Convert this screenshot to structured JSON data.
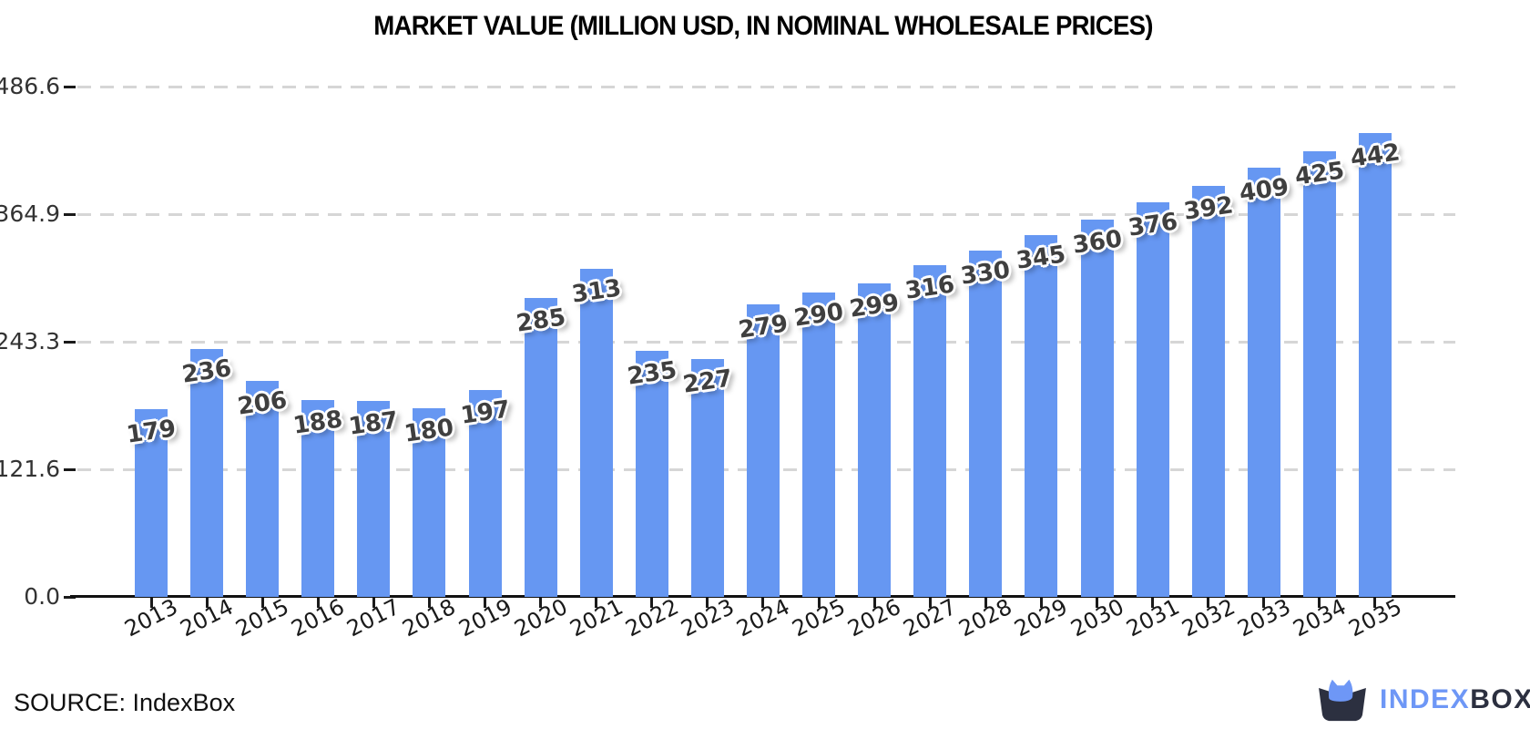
{
  "chart_data": {
    "type": "bar",
    "title": "MARKET VALUE (MILLION USD, IN NOMINAL WHOLESALE PRICES)",
    "categories": [
      "2013",
      "2014",
      "2015",
      "2016",
      "2017",
      "2018",
      "2019",
      "2020",
      "2021",
      "2022",
      "2023",
      "2024",
      "2025",
      "2026",
      "2027",
      "2028",
      "2029",
      "2030",
      "2031",
      "2032",
      "2033",
      "2034",
      "2035"
    ],
    "values": [
      179,
      236,
      206,
      188,
      187,
      180,
      197,
      285,
      313,
      235,
      227,
      279,
      290,
      299,
      316,
      330,
      345,
      360,
      376,
      392,
      409,
      425,
      442
    ],
    "xlabel": "",
    "ylabel": "",
    "ylim": [
      0,
      486.6
    ],
    "yticks": [
      0,
      121.6,
      243.3,
      364.9,
      486.6
    ],
    "ytick_labels": [
      "0.0",
      "121.6",
      "243.3",
      "364.9",
      "486.6"
    ],
    "grid": "horizontal-dashed",
    "legend": "none",
    "colors": {
      "bar": "#6697f2",
      "grid": "#d6d6d6",
      "axis": "#111111",
      "value_label": "#3f3f3f",
      "value_label_outline": "#ffffff"
    }
  },
  "footer": {
    "source": "SOURCE: IndexBox",
    "logo": {
      "icon": "cat-in-box",
      "text_primary": "INDEX",
      "text_secondary": "BOX",
      "color_primary": "#6e97f6",
      "color_secondary": "#2c3040"
    }
  }
}
